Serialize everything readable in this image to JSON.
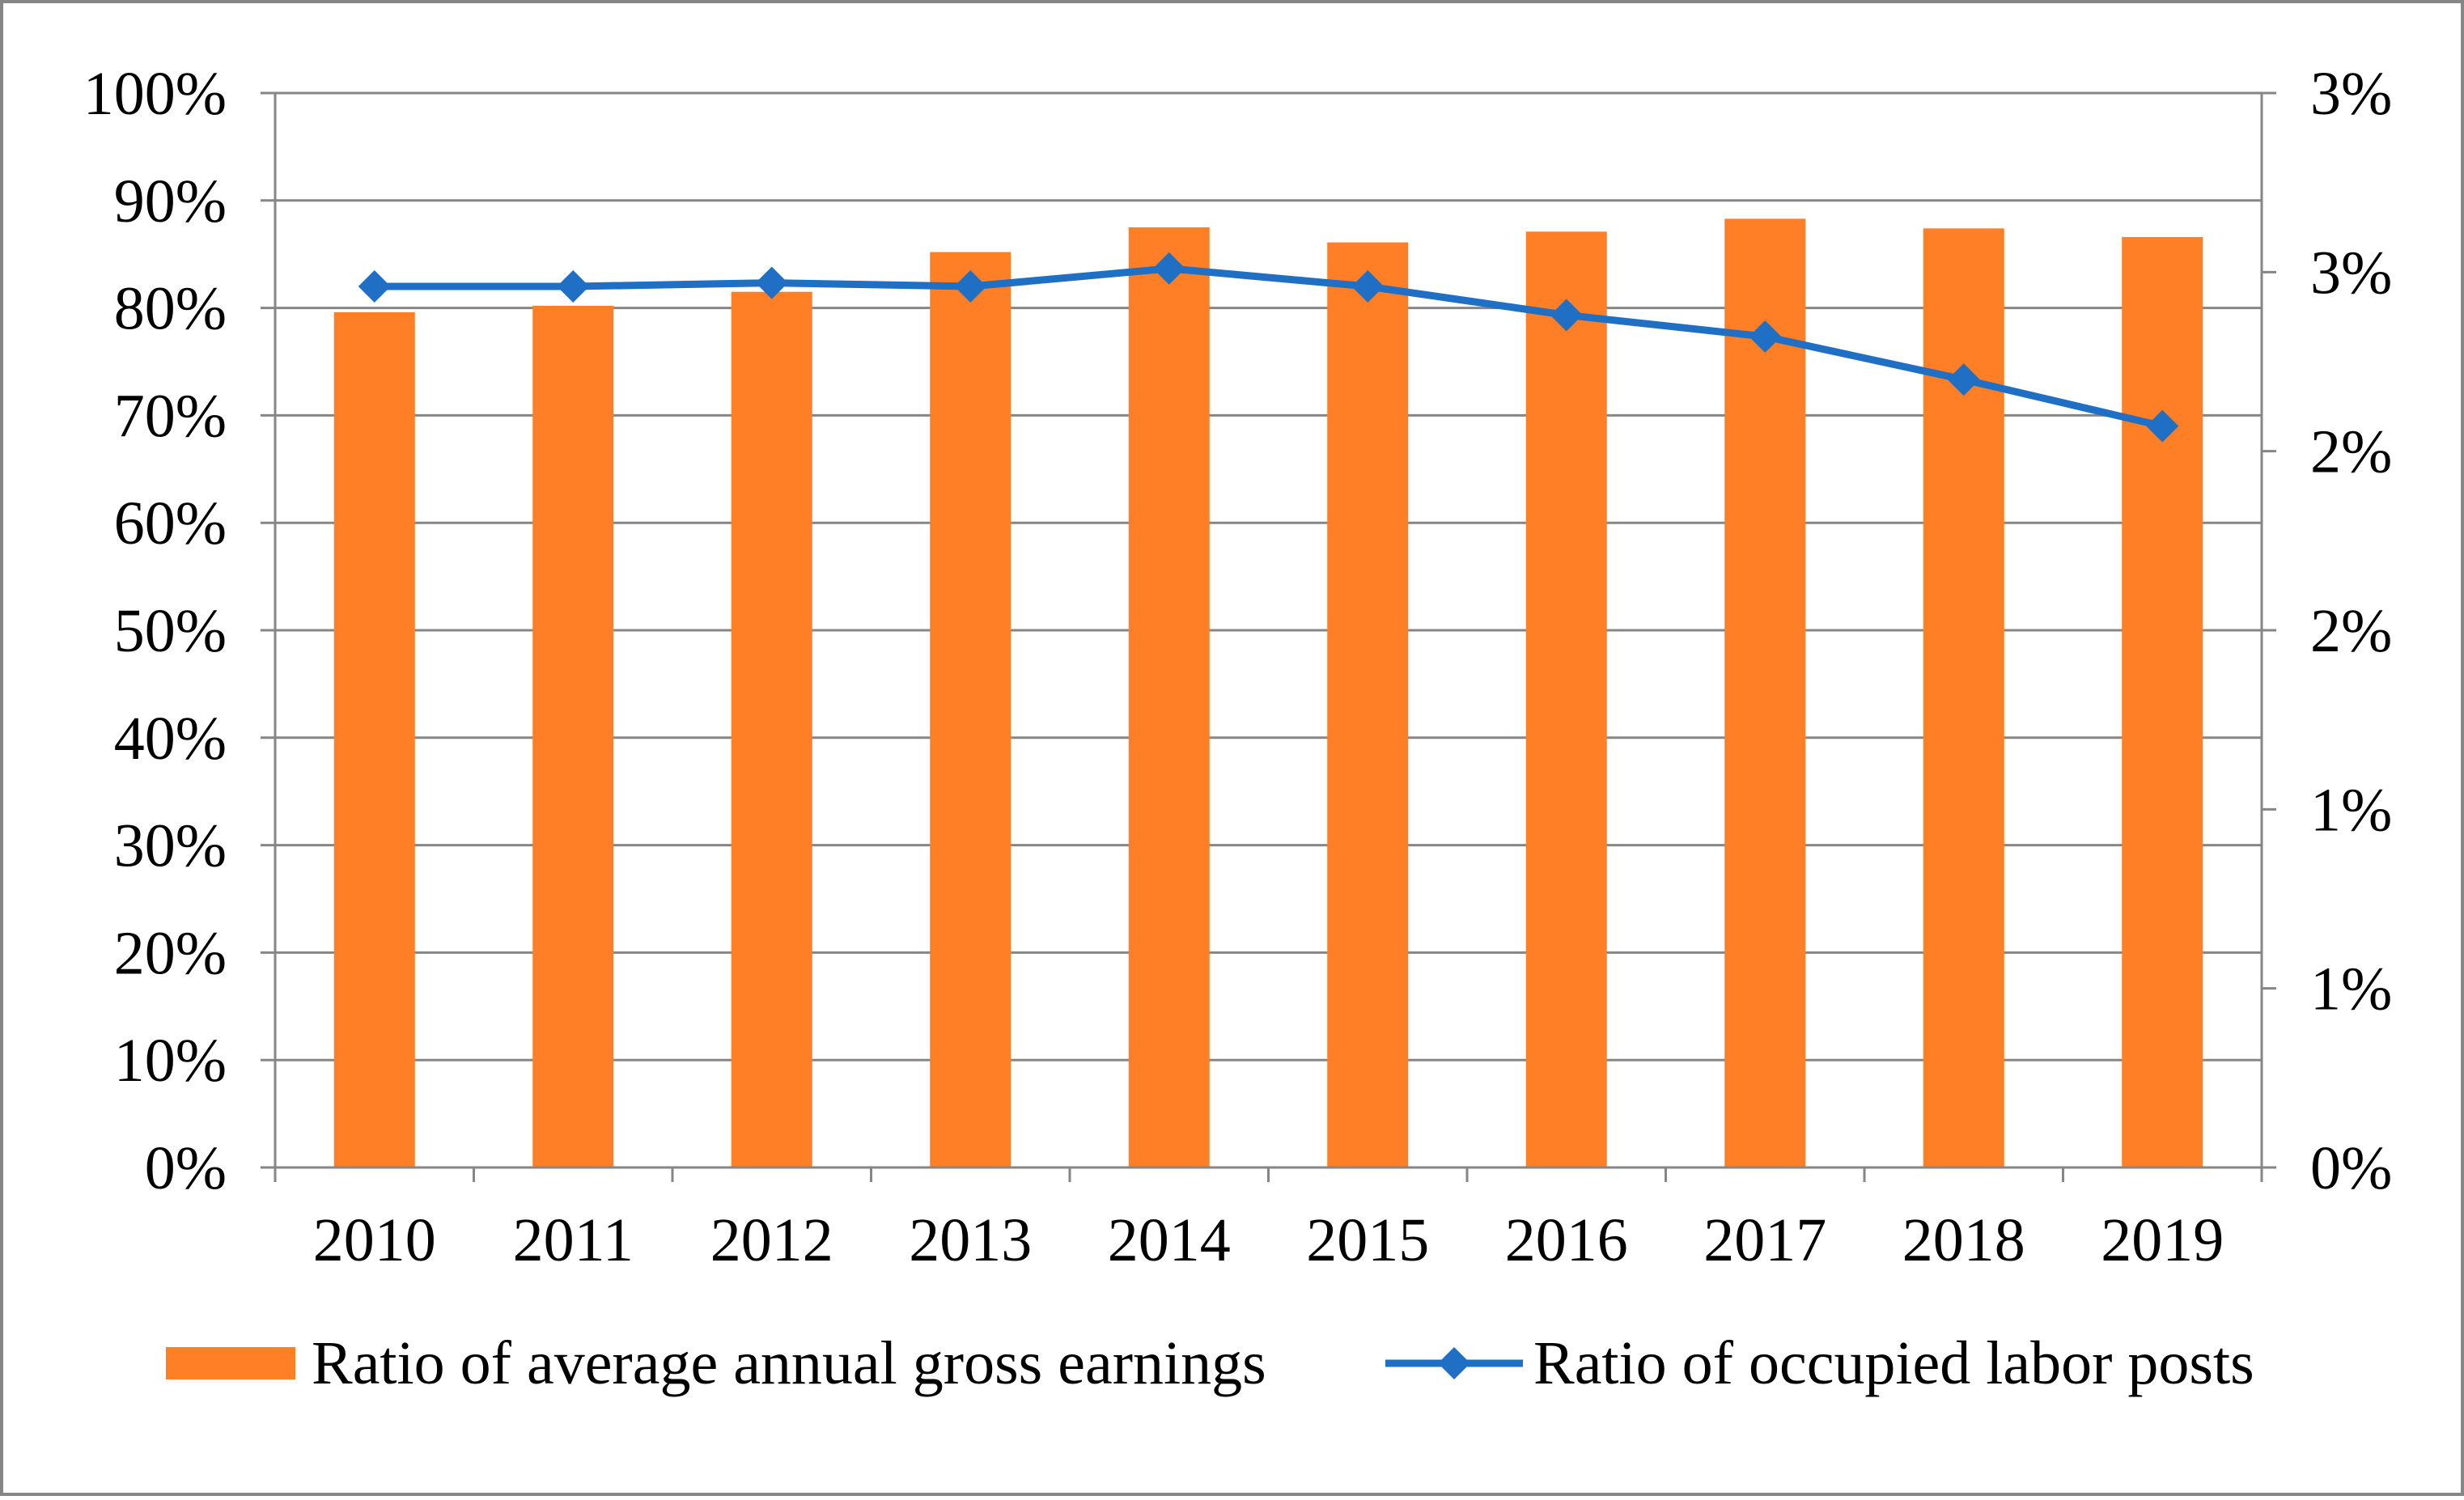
{
  "chart_data": {
    "type": "bar+line",
    "title": "",
    "categories": [
      "2010",
      "2011",
      "2012",
      "2013",
      "2014",
      "2015",
      "2016",
      "2017",
      "2018",
      "2019"
    ],
    "series": [
      {
        "name": "Ratio of average annual gross earnings",
        "type": "bar",
        "axis": "left",
        "color": "#FF7F27",
        "values": [
          79.6,
          80.2,
          81.5,
          85.2,
          87.5,
          86.1,
          87.1,
          88.3,
          87.4,
          86.6
        ]
      },
      {
        "name": "Ratio of occupied labor posts",
        "type": "line",
        "axis": "right",
        "color": "#1F6FC5",
        "marker": "diamond",
        "values": [
          2.46,
          2.46,
          2.47,
          2.46,
          2.51,
          2.46,
          2.38,
          2.32,
          2.2,
          2.07
        ]
      }
    ],
    "y_left": {
      "ylim": [
        0,
        100
      ],
      "ticks": [
        0,
        10,
        20,
        30,
        40,
        50,
        60,
        70,
        80,
        90,
        100
      ],
      "tick_labels": [
        "0%",
        "10%",
        "20%",
        "30%",
        "40%",
        "50%",
        "60%",
        "70%",
        "80%",
        "90%",
        "100%"
      ]
    },
    "y_right": {
      "ylim": [
        0,
        3
      ],
      "ticks": [
        0,
        0.5,
        1,
        1.5,
        2,
        2.5,
        3
      ],
      "tick_labels": [
        "0%",
        "1%",
        "1%",
        "2%",
        "2%",
        "3%",
        "3%"
      ]
    },
    "xlabel": "",
    "ylabel": "",
    "grid": "horizontal",
    "legend_position": "bottom",
    "colors": {
      "bar": "#FF7F27",
      "line": "#1F6FC5",
      "grid": "#868686",
      "axis": "#868686",
      "border": "#868686"
    }
  }
}
